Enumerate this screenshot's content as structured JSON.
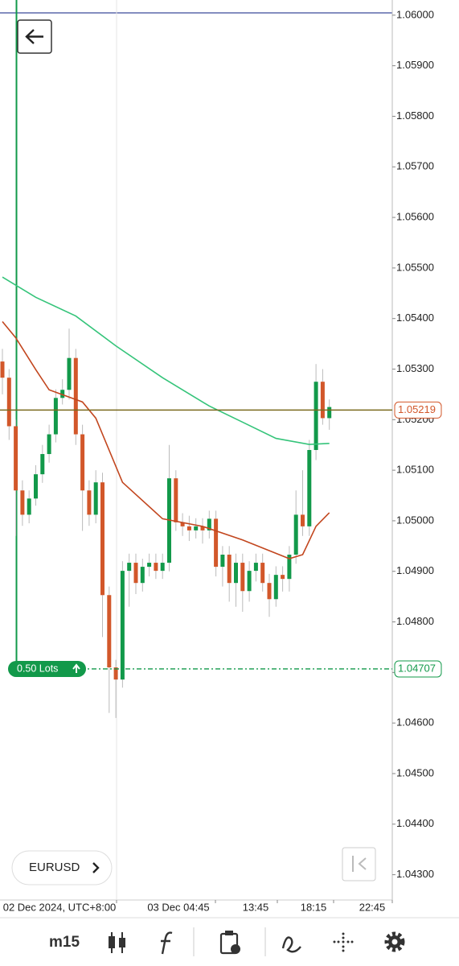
{
  "chart_data": {
    "type": "candlestick",
    "symbol": "EURUSD",
    "timeframe": "m15",
    "x_labels": [
      "02 Dec 2024, UTC+8:00",
      "03 Dec 04:45",
      "13:45",
      "18:15",
      "22:45"
    ],
    "open": [
      1.05315,
      1.05283,
      1.05187,
      1.0506,
      1.05012,
      1.05044,
      1.05092,
      1.05132,
      1.05171,
      1.05243,
      1.05259,
      1.05322,
      1.05171,
      1.0506,
      1.05012,
      1.05076,
      1.04853,
      1.0471,
      1.04686,
      1.04901,
      1.04917,
      1.04877,
      1.04909,
      1.04917,
      1.04901,
      1.04917,
      1.05084,
      1.04997,
      1.04989,
      1.04981,
      1.04989,
      1.04981,
      1.05004,
      1.04909,
      1.04933,
      1.04877,
      1.04917,
      1.04861,
      1.04901,
      1.04917,
      1.04877,
      1.04845,
      1.04893,
      1.04885,
      1.04933,
      1.05012,
      1.04989,
      1.0514,
      1.05275,
      1.05203
    ],
    "high": [
      1.0534,
      1.053,
      1.052,
      1.0508,
      1.0506,
      1.0511,
      1.0515,
      1.0519,
      1.0526,
      1.0528,
      1.0538,
      1.0534,
      1.0519,
      1.0508,
      1.051,
      1.05095,
      1.0487,
      1.04725,
      1.0492,
      1.04935,
      1.04935,
      1.04925,
      1.04935,
      1.04935,
      1.04935,
      1.0515,
      1.051,
      1.05015,
      1.0501,
      1.05005,
      1.05005,
      1.0502,
      1.0502,
      1.0495,
      1.0495,
      1.04935,
      1.04935,
      1.0492,
      1.04935,
      1.04935,
      1.04895,
      1.0491,
      1.0491,
      1.0495,
      1.0506,
      1.051,
      1.0516,
      1.0531,
      1.053,
      1.0524
    ],
    "low": [
      1.0525,
      1.0516,
      1.0497,
      1.0499,
      1.04995,
      1.0503,
      1.05075,
      1.05115,
      1.05155,
      1.0523,
      1.0524,
      1.0515,
      1.0498,
      1.0499,
      1.04995,
      1.0477,
      1.0462,
      1.0461,
      1.0467,
      1.0483,
      1.04855,
      1.0486,
      1.0489,
      1.04885,
      1.04885,
      1.049,
      1.0498,
      1.0497,
      1.0496,
      1.04965,
      1.04955,
      1.04965,
      1.0489,
      1.0487,
      1.0484,
      1.0483,
      1.0482,
      1.0484,
      1.0488,
      1.0486,
      1.0481,
      1.0483,
      1.0486,
      1.0486,
      1.04915,
      1.0497,
      1.0497,
      1.0512,
      1.0519,
      1.0518
    ],
    "close": [
      1.05283,
      1.05187,
      1.0506,
      1.05012,
      1.05044,
      1.05092,
      1.05132,
      1.05171,
      1.05243,
      1.05259,
      1.05322,
      1.05171,
      1.0506,
      1.05012,
      1.05076,
      1.04853,
      1.0471,
      1.04686,
      1.04901,
      1.04917,
      1.04877,
      1.04909,
      1.04917,
      1.04901,
      1.04917,
      1.05084,
      1.04997,
      1.04989,
      1.04981,
      1.04989,
      1.04981,
      1.05004,
      1.04909,
      1.04933,
      1.04877,
      1.04917,
      1.04861,
      1.04901,
      1.04917,
      1.04877,
      1.04845,
      1.04893,
      1.04885,
      1.04933,
      1.05012,
      1.04989,
      1.0514,
      1.05275,
      1.05203,
      1.05225
    ],
    "up_color": "#12994a",
    "down_color": "#d2572a",
    "series": [
      {
        "color": "#35c47a",
        "x": [
          0,
          5,
          11,
          17,
          24,
          31,
          36,
          41,
          46,
          49
        ],
        "values": [
          1.05482,
          1.05442,
          1.05405,
          1.05346,
          1.05283,
          1.05227,
          1.05195,
          1.05163,
          1.05151,
          1.05153
        ]
      },
      {
        "color": "#c2461e",
        "x": [
          0,
          2,
          5,
          7,
          12,
          14,
          18,
          24,
          30,
          36,
          43,
          45,
          47,
          49
        ],
        "values": [
          1.05394,
          1.05362,
          1.05299,
          1.05259,
          1.05235,
          1.05203,
          1.05076,
          1.05004,
          1.04989,
          1.04962,
          1.04925,
          1.04933,
          1.04989,
          1.05016
        ]
      }
    ],
    "current_price": {
      "value": 1.05219,
      "color": "#d2572a",
      "line_color": "#7a6a1e"
    },
    "position": {
      "value": 1.04707,
      "lots": "0.50 Lots",
      "color": "#12994a"
    },
    "ylim": [
      1.0425,
      1.0603
    ],
    "yticks": [
      {
        "value": 1.06,
        "label": "1.06000"
      },
      {
        "value": 1.059,
        "label": "1.05900"
      },
      {
        "value": 1.058,
        "label": "1.05800"
      },
      {
        "value": 1.057,
        "label": "1.05700"
      },
      {
        "value": 1.056,
        "label": "1.05600"
      },
      {
        "value": 1.055,
        "label": "1.05500"
      },
      {
        "value": 1.054,
        "label": "1.05400"
      },
      {
        "value": 1.053,
        "label": "1.05300"
      },
      {
        "value": 1.052,
        "label": "1.05200"
      },
      {
        "value": 1.051,
        "label": "1.05100"
      },
      {
        "value": 1.05,
        "label": "1.05000"
      },
      {
        "value": 1.049,
        "label": "1.04900"
      },
      {
        "value": 1.048,
        "label": "1.04800"
      },
      {
        "value": 1.047,
        "label": "1.04700"
      },
      {
        "value": 1.046,
        "label": "1.04600"
      },
      {
        "value": 1.045,
        "label": "1.04500"
      },
      {
        "value": 1.044,
        "label": "1.04400"
      },
      {
        "value": 1.043,
        "label": "1.04300"
      }
    ]
  }
}
